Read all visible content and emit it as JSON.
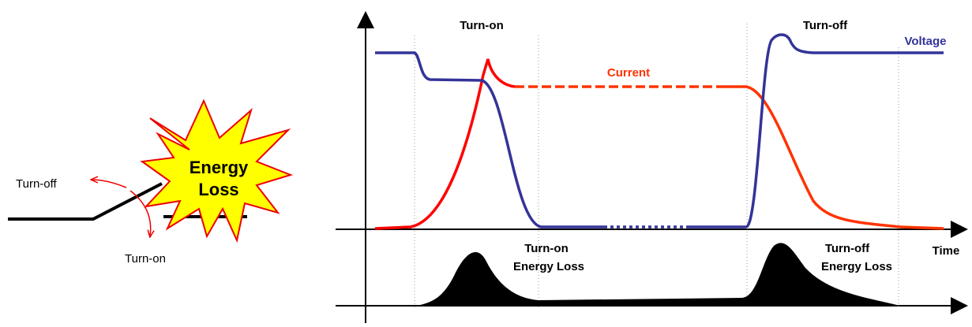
{
  "switch": {
    "turn_off": "Turn-off",
    "turn_on": "Turn-on",
    "burst": [
      "Energy",
      "Loss"
    ]
  },
  "waveform": {
    "turn_on": "Turn-on",
    "turn_off": "Turn-off",
    "voltage": "Voltage",
    "current": "Current",
    "time": "Time",
    "turn_on_loss": [
      "Turn-on",
      "Energy Loss"
    ],
    "turn_off_loss": [
      "Turn-off",
      "Energy Loss"
    ]
  }
}
